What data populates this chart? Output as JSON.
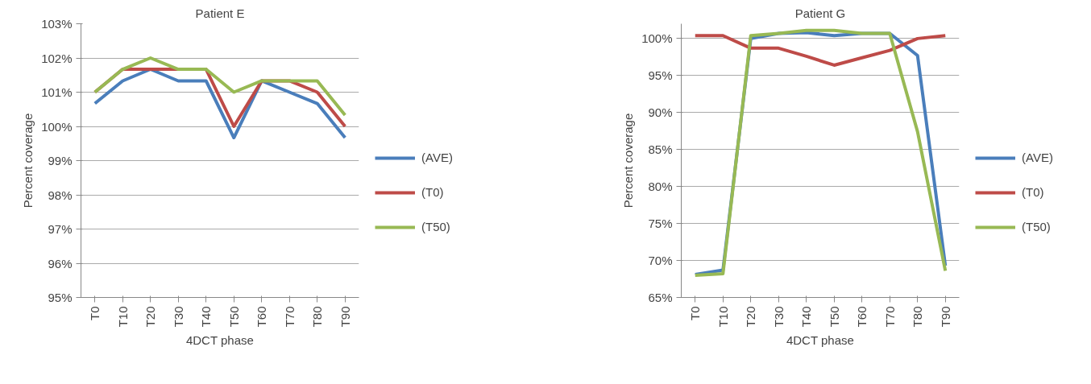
{
  "chart_data": [
    {
      "type": "line",
      "title": "Patient E",
      "xlabel": "4DCT phase",
      "ylabel": "Percent coverage",
      "categories": [
        "T0",
        "T10",
        "T20",
        "T30",
        "T40",
        "T50",
        "T60",
        "T70",
        "T80",
        "T90"
      ],
      "ylim": [
        95,
        103
      ],
      "yticks": [
        {
          "value": 95,
          "label": "95%"
        },
        {
          "value": 96,
          "label": "96%"
        },
        {
          "value": 97,
          "label": "97%"
        },
        {
          "value": 98,
          "label": "98%"
        },
        {
          "value": 99,
          "label": "99%"
        },
        {
          "value": 100,
          "label": "100%"
        },
        {
          "value": 101,
          "label": "101%"
        },
        {
          "value": 102,
          "label": "102%"
        },
        {
          "value": 103,
          "label": "103%"
        }
      ],
      "grid": "y",
      "legend": "right",
      "line_style": "solid",
      "series": [
        {
          "name": "(AVE)",
          "color": "#4a7ebb",
          "values": [
            100.67,
            101.33,
            101.67,
            101.33,
            101.33,
            99.67,
            101.33,
            101.0,
            100.67,
            99.67
          ]
        },
        {
          "name": "(T0)",
          "color": "#be4b48",
          "values": [
            101.0,
            101.67,
            101.67,
            101.67,
            101.67,
            100.0,
            101.33,
            101.33,
            101.0,
            100.0
          ]
        },
        {
          "name": "(T50)",
          "color": "#98b954",
          "values": [
            101.0,
            101.67,
            102.0,
            101.67,
            101.67,
            101.0,
            101.33,
            101.33,
            101.33,
            100.33
          ]
        }
      ]
    },
    {
      "type": "line",
      "title": "Patient G",
      "xlabel": "4DCT phase",
      "ylabel": "Percent coverage",
      "categories": [
        "T0",
        "T10",
        "T20",
        "T30",
        "T40",
        "T50",
        "T60",
        "T70",
        "T80",
        "T90"
      ],
      "ylim": [
        65,
        102
      ],
      "yticks": [
        {
          "value": 65,
          "label": "65%"
        },
        {
          "value": 70,
          "label": "70%"
        },
        {
          "value": 75,
          "label": "75%"
        },
        {
          "value": 80,
          "label": "80%"
        },
        {
          "value": 85,
          "label": "85%"
        },
        {
          "value": 90,
          "label": "90%"
        },
        {
          "value": 95,
          "label": "95%"
        },
        {
          "value": 100,
          "label": "100%"
        }
      ],
      "grid": "y",
      "legend": "right",
      "line_style": "solid",
      "series": [
        {
          "name": "(AVE)",
          "color": "#4a7ebb",
          "values": [
            68.1,
            68.7,
            100.0,
            100.7,
            100.8,
            100.4,
            100.7,
            100.7,
            97.7,
            69.3
          ]
        },
        {
          "name": "(T0)",
          "color": "#be4b48",
          "values": [
            100.4,
            100.4,
            98.7,
            98.7,
            97.6,
            96.4,
            97.4,
            98.4,
            100.0,
            100.4
          ]
        },
        {
          "name": "(T50)",
          "color": "#98b954",
          "values": [
            68.0,
            68.2,
            100.4,
            100.7,
            101.1,
            101.1,
            100.7,
            100.7,
            87.4,
            68.6
          ]
        }
      ]
    }
  ]
}
